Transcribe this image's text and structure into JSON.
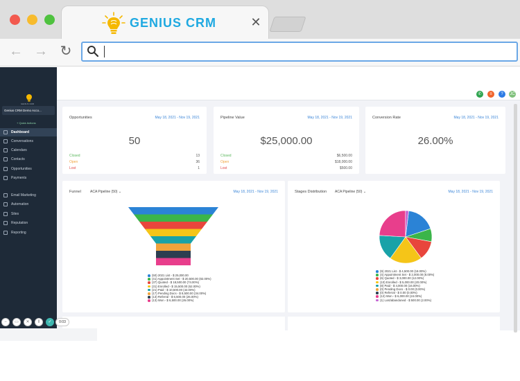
{
  "browser": {
    "tab_title": "GENIUS CRM",
    "url": "",
    "colors": {
      "brand": "#1fa9e1",
      "logo": "#f5b800"
    }
  },
  "sidebar": {
    "logo_text": "GENIUS CRM",
    "account": "Genius CRM Demo Acco...",
    "quick_actions": "Quick Actions",
    "items": [
      {
        "label": "Dashboard",
        "icon": "dashboard-icon",
        "active": true
      },
      {
        "label": "Conversations",
        "icon": "chat-icon"
      },
      {
        "label": "Calendars",
        "icon": "calendar-icon"
      },
      {
        "label": "Contacts",
        "icon": "contacts-icon"
      },
      {
        "label": "Opportunities",
        "icon": "funnel-icon"
      },
      {
        "label": "Payments",
        "icon": "payments-icon"
      },
      {
        "label": "Email Marketing",
        "icon": "email-icon"
      },
      {
        "label": "Automation",
        "icon": "automation-icon"
      },
      {
        "label": "Sites",
        "icon": "sites-icon"
      },
      {
        "label": "Reputation",
        "icon": "reputation-icon"
      },
      {
        "label": "Reporting",
        "icon": "reporting-icon"
      }
    ]
  },
  "header_icons": [
    {
      "name": "phone-icon",
      "color": "#2ea44f",
      "glyph": "✆"
    },
    {
      "name": "notification-icon",
      "color": "#f0642c",
      "glyph": "≡"
    },
    {
      "name": "help-icon",
      "color": "#2c7be5",
      "glyph": "?"
    },
    {
      "name": "user-avatar",
      "color": "#7fc07b",
      "glyph": "JC"
    }
  ],
  "cards": {
    "opportunities": {
      "title": "Opportunities",
      "date": "May 18, 2021 - Nov 19, 2021",
      "value": "50",
      "rows": [
        {
          "label": "Closed",
          "value": "13",
          "color": "#5bb85d"
        },
        {
          "label": "Open",
          "value": "36",
          "color": "#f0a33c"
        },
        {
          "label": "Lost",
          "value": "1",
          "color": "#e04848"
        }
      ]
    },
    "pipeline": {
      "title": "Pipeline Value",
      "date": "May 18, 2021 - Nov 19, 2021",
      "value": "$25,000.00",
      "rows": [
        {
          "label": "Closed",
          "value": "$6,500.00",
          "color": "#5bb85d"
        },
        {
          "label": "Open",
          "value": "$18,000.00",
          "color": "#f0a33c"
        },
        {
          "label": "Lost",
          "value": "$500.00",
          "color": "#e04848"
        }
      ]
    },
    "conversion": {
      "title": "Conversion Rate",
      "date": "May 18, 2021 - Nov 19, 2021",
      "value": "26.00%"
    },
    "funnel": {
      "title": "Funnel",
      "select": "ACA Pipeline (50)",
      "date": "May 18, 2021 - Nov 19, 2021",
      "legend": [
        {
          "label": "(50) 2021 List - $ 25,000.00",
          "color": "#2b83d6"
        },
        {
          "label": "(41) Appointment Set - $ 20,500.00 (82.00%)",
          "color": "#3bb54a"
        },
        {
          "label": "(37) Quoted - $ 18,500.00 (74.00%)",
          "color": "#e8463c"
        },
        {
          "label": "(31) Enrolled - $ 15,500.00 (62.00%)",
          "color": "#f5c518"
        },
        {
          "label": "(21) Paid - $ 10,500.00 (42.00%)",
          "color": "#19a2a8"
        },
        {
          "label": "(17) Pending Docs - $ 8,500.00 (34.00%)",
          "color": "#f0a33c"
        },
        {
          "label": "(13) Referral - $ 6,500.00 (26.00%)",
          "color": "#2c3e50"
        },
        {
          "label": "(13) Won - $ 6,500.00 (26.00%)",
          "color": "#e83e8c"
        }
      ]
    },
    "stages": {
      "title": "Stages Distribution",
      "select": "ACA Pipeline (50)",
      "date": "May 18, 2021 - Nov 19, 2021",
      "legend": [
        {
          "label": "(9) 2021 List - $ 4,500.00 (18.00%)",
          "color": "#2b83d6"
        },
        {
          "label": "(4) Appointment Set - $ 2,000.00 (8.00%)",
          "color": "#3bb54a"
        },
        {
          "label": "(6) Quoted - $ 3,000.00 (12.00%)",
          "color": "#e8463c"
        },
        {
          "label": "(10) Enrolled - $ 5,000.00 (20.00%)",
          "color": "#f5c518"
        },
        {
          "label": "(8) Paid - $ 4,000.00 (16.00%)",
          "color": "#19a2a8"
        },
        {
          "label": "(0) Pending Docs - $ 0.00 (0.00%)",
          "color": "#f0a33c"
        },
        {
          "label": "(0) Referral - $ 0.00 (0.00%)",
          "color": "#2c3e50"
        },
        {
          "label": "(12) Won - $ 6,000.00 (24.00%)",
          "color": "#e83e8c"
        },
        {
          "label": "(1) Lost/abandoned - $ 500.00 (2.00%)",
          "color": "#c566d4"
        }
      ]
    }
  },
  "chart_data": [
    {
      "type": "bar",
      "orientation": "funnel",
      "categories": [
        "2021 List",
        "Appointment Set",
        "Quoted",
        "Enrolled",
        "Paid",
        "Pending Docs",
        "Referral",
        "Won"
      ],
      "values": [
        50,
        41,
        37,
        31,
        21,
        17,
        13,
        13
      ],
      "colors": [
        "#2b83d6",
        "#3bb54a",
        "#e8463c",
        "#f5c518",
        "#19a2a8",
        "#f0a33c",
        "#2c3e50",
        "#e83e8c"
      ]
    },
    {
      "type": "pie",
      "categories": [
        "2021 List",
        "Appointment Set",
        "Quoted",
        "Enrolled",
        "Paid",
        "Pending Docs",
        "Referral",
        "Won",
        "Lost/abandoned"
      ],
      "values": [
        9,
        4,
        6,
        10,
        8,
        0,
        0,
        12,
        1
      ],
      "colors": [
        "#2b83d6",
        "#3bb54a",
        "#e8463c",
        "#f5c518",
        "#19a2a8",
        "#f0a33c",
        "#2c3e50",
        "#e83e8c",
        "#c566d4"
      ]
    }
  ],
  "recorder": {
    "time": "0:03"
  }
}
